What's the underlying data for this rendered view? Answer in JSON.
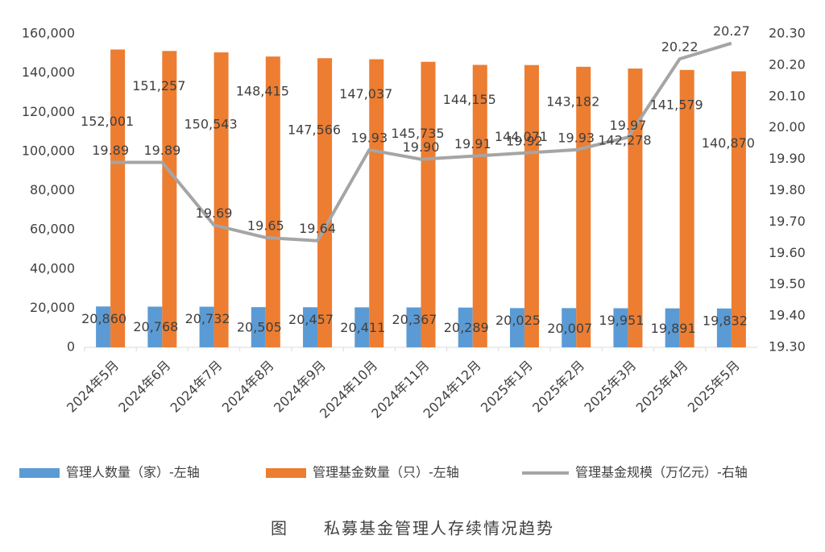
{
  "chart_data": {
    "type": "bar-line",
    "title": "图　　私募基金管理人存续情况趋势",
    "categories": [
      "2024年5月",
      "2024年6月",
      "2024年7月",
      "2024年8月",
      "2024年9月",
      "2024年10月",
      "2024年11月",
      "2024年12月",
      "2025年1月",
      "2025年2月",
      "2025年3月",
      "2025年4月",
      "2025年5月"
    ],
    "series": [
      {
        "name": "管理人数量（家）-左轴",
        "type": "bar",
        "color": "#5b9bd5",
        "values": [
          20860,
          20768,
          20732,
          20505,
          20457,
          20411,
          20367,
          20289,
          20025,
          20007,
          19951,
          19891,
          19832
        ],
        "value_labels": [
          "20,860",
          "20,768",
          "20,732",
          "20,505",
          "20,457",
          "20,411",
          "20,367",
          "20,289",
          "20,025",
          "20,007",
          "19,951",
          "19,891",
          "19,832"
        ]
      },
      {
        "name": "管理基金数量（只）-左轴",
        "type": "bar",
        "color": "#ed7d31",
        "values": [
          152001,
          151257,
          150543,
          148415,
          147566,
          147037,
          145735,
          144155,
          144071,
          143182,
          142278,
          141579,
          140870
        ],
        "value_labels": [
          "152,001",
          "151,257",
          "150,543",
          "148,415",
          "147,566",
          "147,037",
          "145,735",
          "144,155",
          "144,071",
          "143,182",
          "142,278",
          "141,579",
          "140,870"
        ]
      },
      {
        "name": "管理基金规模（万亿元）-右轴",
        "type": "line",
        "axis": "y2",
        "color": "#a5a5a5",
        "values": [
          19.89,
          19.89,
          19.69,
          19.65,
          19.64,
          19.93,
          19.9,
          19.91,
          19.92,
          19.93,
          19.97,
          20.22,
          20.27
        ],
        "value_labels": [
          "19.89",
          "19.89",
          "19.69",
          "19.65",
          "19.64",
          "19.93",
          "19.90",
          "19.91",
          "19.92",
          "19.93",
          "19.97",
          "20.22",
          "20.27"
        ]
      }
    ],
    "ylim": [
      0,
      160000
    ],
    "yticks": [
      0,
      {
        "value": 20000,
        "label": "20,000"
      },
      {
        "value": 40000,
        "label": "40,000"
      },
      {
        "value": 60000,
        "label": "60,000"
      },
      {
        "value": 80000,
        "label": "80,000"
      },
      {
        "value": 100000,
        "label": "100,000"
      },
      {
        "value": 120000,
        "label": "120,000"
      },
      {
        "value": 140000,
        "label": "140,000"
      },
      {
        "value": 160000,
        "label": "160,000"
      }
    ],
    "y2lim": [
      19.3,
      20.3
    ],
    "y2ticks": [
      {
        "value": 19.3,
        "label": "19.30"
      },
      {
        "value": 19.4,
        "label": "19.40"
      },
      {
        "value": 19.5,
        "label": "19.50"
      },
      {
        "value": 19.6,
        "label": "19.60"
      },
      {
        "value": 19.7,
        "label": "19.70"
      },
      {
        "value": 19.8,
        "label": "19.80"
      },
      {
        "value": 19.9,
        "label": "19.90"
      },
      {
        "value": 20,
        "label": "20.00"
      },
      {
        "value": 20.1,
        "label": "20.10"
      },
      {
        "value": 20.2,
        "label": "20.20"
      },
      {
        "value": 20.3,
        "label": "20.30"
      }
    ],
    "grid": false,
    "legend": "bottom"
  }
}
